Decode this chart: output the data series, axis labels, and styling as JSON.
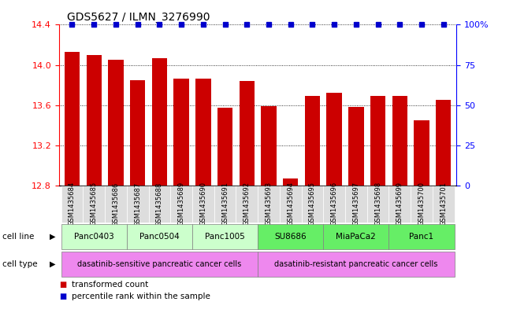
{
  "title": "GDS5627 / ILMN_3276990",
  "samples": [
    "GSM1435684",
    "GSM1435685",
    "GSM1435686",
    "GSM1435687",
    "GSM1435688",
    "GSM1435689",
    "GSM1435690",
    "GSM1435691",
    "GSM1435692",
    "GSM1435693",
    "GSM1435694",
    "GSM1435695",
    "GSM1435696",
    "GSM1435697",
    "GSM1435698",
    "GSM1435699",
    "GSM1435700",
    "GSM1435701"
  ],
  "transformed_counts": [
    14.13,
    14.1,
    14.05,
    13.85,
    14.07,
    13.86,
    13.86,
    13.57,
    13.84,
    13.59,
    12.87,
    13.69,
    13.72,
    13.58,
    13.69,
    13.69,
    13.45,
    13.65
  ],
  "ylim_left": [
    12.8,
    14.4
  ],
  "ylim_right": [
    0,
    100
  ],
  "yticks_left": [
    12.8,
    13.2,
    13.6,
    14.0,
    14.4
  ],
  "yticks_right": [
    0,
    25,
    50,
    75,
    100
  ],
  "ytick_right_labels": [
    "0",
    "25",
    "50",
    "75",
    "100%"
  ],
  "bar_color": "#cc0000",
  "percentile_color": "#0000cc",
  "cell_lines": [
    {
      "name": "Panc0403",
      "start": 0,
      "end": 3,
      "color": "#ccffcc"
    },
    {
      "name": "Panc0504",
      "start": 3,
      "end": 6,
      "color": "#ccffcc"
    },
    {
      "name": "Panc1005",
      "start": 6,
      "end": 9,
      "color": "#ccffcc"
    },
    {
      "name": "SU8686",
      "start": 9,
      "end": 12,
      "color": "#66ee66"
    },
    {
      "name": "MiaPaCa2",
      "start": 12,
      "end": 15,
      "color": "#66ee66"
    },
    {
      "name": "Panc1",
      "start": 15,
      "end": 18,
      "color": "#66ee66"
    }
  ],
  "cell_types": [
    {
      "name": "dasatinib-sensitive pancreatic cancer cells",
      "start": 0,
      "end": 9,
      "color": "#ee88ee"
    },
    {
      "name": "dasatinib-resistant pancreatic cancer cells",
      "start": 9,
      "end": 18,
      "color": "#ee88ee"
    }
  ],
  "sample_bg_color": "#dddddd",
  "legend_transformed": "transformed count",
  "legend_percentile": "percentile rank within the sample",
  "cell_line_label": "cell line",
  "cell_type_label": "cell type"
}
